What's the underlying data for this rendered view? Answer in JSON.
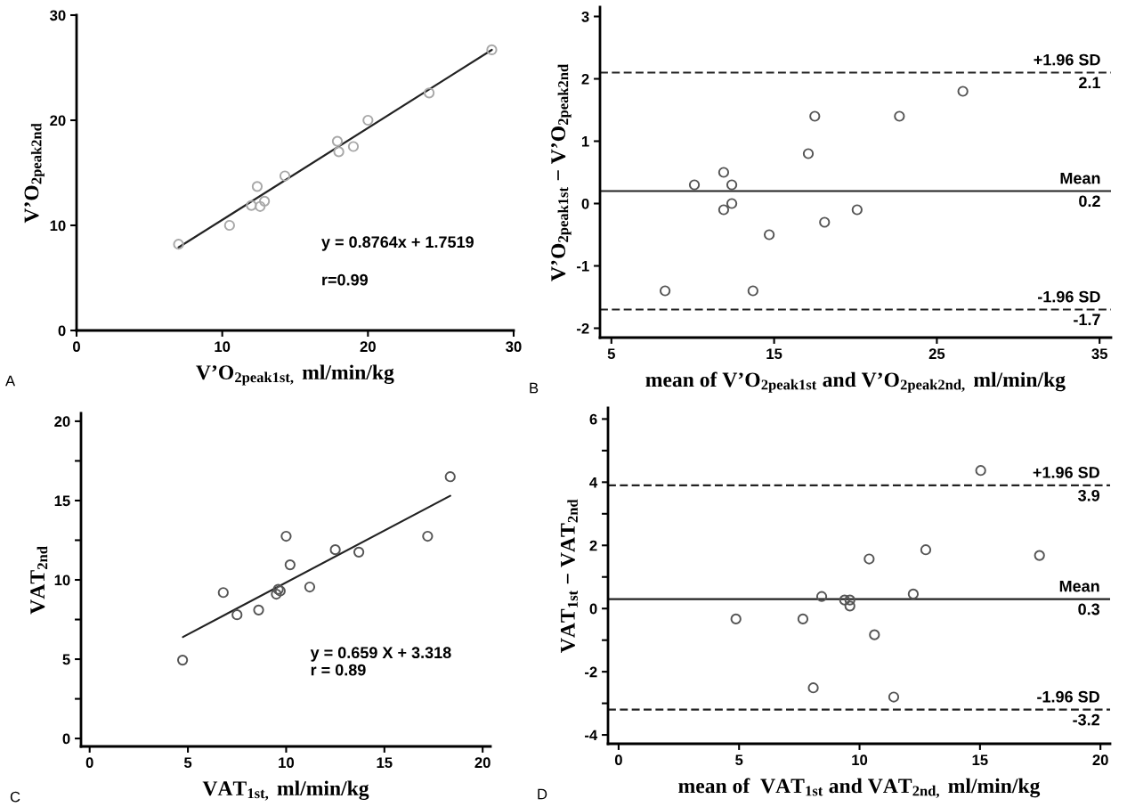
{
  "chart_data": [
    {
      "type": "scatter",
      "xlabel": "V’O$_{2peak1st,}$ ml/min/kg",
      "ylabel": "V’O$_{2peak2nd}$",
      "xlim": [
        0,
        30
      ],
      "ylim": [
        0,
        30
      ],
      "xticks": [
        0,
        10,
        20,
        30
      ],
      "yticks": [
        0,
        10,
        20,
        30
      ],
      "grid": false,
      "legend": false,
      "annotations": [
        "A",
        "y = 0.8764x + 1.7519",
        "r=0.99"
      ],
      "series": [
        {
          "type": "scatter",
          "marker": "circle",
          "color": "#a8a8a8",
          "x": [
            7,
            10.5,
            12,
            12.4,
            12.6,
            12.9,
            14.3,
            17.9,
            18,
            19,
            20,
            24.2,
            28.5
          ],
          "values": [
            8.2,
            10,
            11.9,
            13.7,
            11.8,
            12.3,
            14.7,
            18,
            17,
            17.5,
            20,
            22.6,
            26.7
          ]
        },
        {
          "type": "line",
          "marker": "none",
          "color": "#222222",
          "x": [
            7,
            28.5
          ],
          "values": [
            7.9,
            26.7
          ]
        }
      ]
    },
    {
      "type": "scatter",
      "xlabel": "mean of V’O$_{2peak1st}$ and V’O$_{2peak2nd,}$ ml/min/kg",
      "ylabel": "V’O$_{2peak1st}$ − V’O$_{2peak2nd}$",
      "xlim": [
        4.3,
        35.7
      ],
      "ylim": [
        -2.15,
        3.15
      ],
      "xticks": [
        5,
        15,
        25,
        35
      ],
      "yticks": [
        -2,
        -1,
        0,
        1,
        2,
        3
      ],
      "marker": "circle",
      "grid": false,
      "legend": false,
      "annotations": [
        "B",
        {
          "text": "2.1",
          "y": 2.1
        },
        {
          "text": "0.2",
          "y": 0.2
        },
        {
          "text": "-1.7",
          "y": -1.7
        }
      ],
      "ref_lines": [
        {
          "axis": "y",
          "value": 2.1,
          "label": "+1.96 SD",
          "line_style": "dashed",
          "color": "#222222"
        },
        {
          "axis": "y",
          "value": 0.2,
          "label": "Mean",
          "line_style": "solid",
          "color": "#222222"
        },
        {
          "axis": "y",
          "value": -1.7,
          "label": "-1.96 SD",
          "line_style": "dashed",
          "color": "#222222"
        }
      ],
      "series": [
        {
          "type": "scatter",
          "color": "#555555",
          "x": [
            8.3,
            10.1,
            11.9,
            11.9,
            12.4,
            12.4,
            13.7,
            14.7,
            17.1,
            17.5,
            18.1,
            20.1,
            22.7,
            26.6
          ],
          "values": [
            -1.4,
            0.3,
            0.5,
            -0.1,
            0.3,
            0.0,
            -1.4,
            -0.5,
            0.8,
            1.4,
            -0.3,
            -0.1,
            1.4,
            1.8
          ]
        }
      ]
    },
    {
      "type": "scatter",
      "xlabel": "VAT$_{1st,}$ ml/min/kg",
      "ylabel": "VAT$_{2nd}$",
      "xlim": [
        -0.44,
        20.4
      ],
      "ylim": [
        -0.5,
        20.5
      ],
      "xticks": [
        0,
        5,
        10,
        15,
        20
      ],
      "yticks": [
        0,
        {
          "value": 2.5,
          "label": null
        },
        5,
        {
          "value": 7.5,
          "label": null
        },
        10,
        {
          "value": 12.5,
          "label": null
        },
        15,
        {
          "value": 17.5,
          "label": null
        },
        20
      ],
      "grid": false,
      "legend": false,
      "annotations": [
        "C",
        "y = 0.659 X + 3.318\nr = 0.89"
      ],
      "series": [
        {
          "type": "scatter",
          "marker": "circle",
          "color": "#555555",
          "x": [
            4.73,
            6.8,
            7.5,
            8.6,
            9.5,
            9.6,
            9.7,
            10.0,
            10.2,
            11.2,
            12.5,
            13.7,
            17.2,
            18.35
          ],
          "values": [
            4.94,
            9.2,
            7.8,
            8.1,
            9.1,
            9.4,
            9.3,
            12.75,
            10.95,
            9.55,
            11.9,
            11.75,
            12.75,
            16.5
          ]
        },
        {
          "type": "line",
          "marker": "none",
          "color": "#222222",
          "x": [
            4.75,
            18.35
          ],
          "values": [
            6.4,
            15.3
          ]
        }
      ]
    },
    {
      "type": "scatter",
      "xlabel": "mean of  VAT$_{1st}$ and VAT$_{2nd,}$ ml/min/kg",
      "ylabel": "VAT$_{1st}$ − VAT$_{2nd}$",
      "xlim": [
        -0.44,
        20.4
      ],
      "ylim": [
        -4.28,
        6.35
      ],
      "xticks": [
        0,
        5,
        10,
        15,
        20
      ],
      "yticks": [
        -4,
        {
          "value": -3,
          "label": null
        },
        -2,
        {
          "value": -1,
          "label": null
        },
        0,
        {
          "value": 1,
          "label": null
        },
        2,
        {
          "value": 3,
          "label": null
        },
        4,
        {
          "value": 5,
          "label": null
        },
        6
      ],
      "marker": "circle",
      "grid": false,
      "legend": false,
      "annotations": [
        "D",
        {
          "text": "3.9",
          "y": 3.9
        },
        {
          "text": "0.3",
          "y": 0.3
        },
        {
          "text": "-3.2",
          "y": -3.2
        }
      ],
      "ref_lines": [
        {
          "axis": "y",
          "value": 3.9,
          "label": "+1.96 SD",
          "line_style": "dashed",
          "color": "#222222"
        },
        {
          "axis": "y",
          "value": 0.3,
          "label": "Mean",
          "line_style": "solid",
          "color": "#222222"
        },
        {
          "axis": "y",
          "value": -3.2,
          "label": "-1.96 SD",
          "line_style": "dashed",
          "color": "#222222"
        }
      ],
      "series": [
        {
          "type": "scatter",
          "color": "#555555",
          "x": [
            4.87,
            7.65,
            8.08,
            8.43,
            9.38,
            9.6,
            9.6,
            10.4,
            10.62,
            11.42,
            12.23,
            12.75,
            15.03,
            17.47
          ],
          "values": [
            -0.33,
            -0.33,
            -2.51,
            0.38,
            0.27,
            0.27,
            0.08,
            1.57,
            -0.83,
            -2.8,
            0.46,
            1.86,
            4.37,
            1.68
          ]
        }
      ]
    }
  ]
}
